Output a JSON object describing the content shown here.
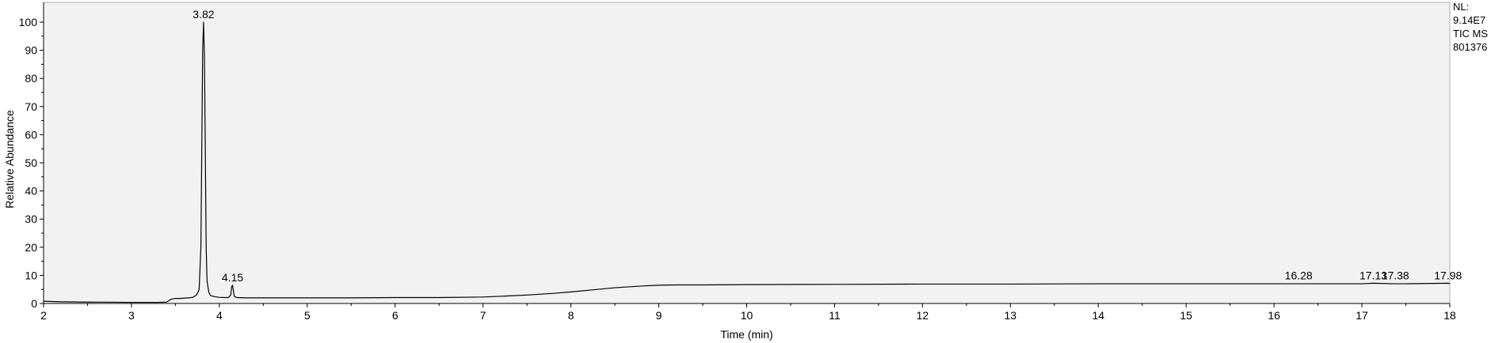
{
  "chart_data": {
    "type": "line",
    "title": "",
    "xlabel": "Time (min)",
    "ylabel": "Relative Abundance",
    "xlim": [
      2,
      18
    ],
    "ylim": [
      0,
      100
    ],
    "xticks": [
      2,
      3,
      4,
      5,
      6,
      7,
      8,
      9,
      10,
      11,
      12,
      13,
      14,
      15,
      16,
      17,
      18
    ],
    "yticks": [
      0,
      10,
      20,
      30,
      40,
      50,
      60,
      70,
      80,
      90,
      100
    ],
    "grid": false,
    "colors": {
      "plot_background": "#f2f2f2",
      "trace": "#000000"
    },
    "side_labels": [
      "NL:",
      "9.14E7",
      "TIC  MS",
      "801376"
    ],
    "peak_labels": [
      {
        "x": 3.82,
        "y": 100,
        "text": "3.82"
      },
      {
        "x": 4.15,
        "y": 6.5,
        "text": "4.15"
      },
      {
        "x": 16.28,
        "y": 7.2,
        "text": "16.28"
      },
      {
        "x": 17.13,
        "y": 7.2,
        "text": "17.13"
      },
      {
        "x": 17.38,
        "y": 7.2,
        "text": "17.38"
      },
      {
        "x": 17.98,
        "y": 7.2,
        "text": "17.98"
      }
    ],
    "series": [
      {
        "x": [
          2.0,
          2.2,
          2.5,
          3.0,
          3.3,
          3.4,
          3.45,
          3.5,
          3.55,
          3.6,
          3.65,
          3.7,
          3.74,
          3.77,
          3.79,
          3.8,
          3.81,
          3.82,
          3.83,
          3.84,
          3.85,
          3.86,
          3.88,
          3.9,
          3.95,
          4.0,
          4.05,
          4.1,
          4.13,
          4.14,
          4.15,
          4.16,
          4.17,
          4.2,
          4.3,
          4.5,
          5.0,
          5.5,
          6.0,
          6.5,
          7.0,
          7.3,
          7.5,
          7.8,
          8.0,
          8.3,
          8.5,
          8.8,
          9.0,
          9.2,
          9.5,
          10.0,
          11.0,
          12.0,
          13.0,
          14.0,
          15.0,
          16.0,
          16.28,
          16.5,
          17.0,
          17.13,
          17.38,
          17.5,
          17.98,
          18.0
        ],
        "y": [
          0.8,
          0.6,
          0.5,
          0.4,
          0.4,
          0.5,
          1.5,
          1.8,
          1.8,
          1.9,
          2.0,
          2.2,
          3.0,
          5.0,
          20.0,
          55.0,
          90.0,
          100.0,
          88.0,
          55.0,
          20.0,
          8.0,
          4.0,
          2.8,
          2.4,
          2.2,
          2.1,
          2.1,
          3.0,
          6.0,
          6.5,
          4.5,
          2.5,
          2.1,
          2.0,
          2.0,
          2.0,
          2.0,
          2.1,
          2.1,
          2.3,
          2.7,
          3.0,
          3.6,
          4.1,
          5.0,
          5.6,
          6.2,
          6.5,
          6.6,
          6.6,
          6.7,
          6.8,
          6.9,
          6.9,
          7.0,
          7.0,
          7.0,
          7.0,
          7.0,
          7.0,
          7.2,
          7.0,
          7.0,
          7.2,
          7.1
        ]
      }
    ]
  }
}
